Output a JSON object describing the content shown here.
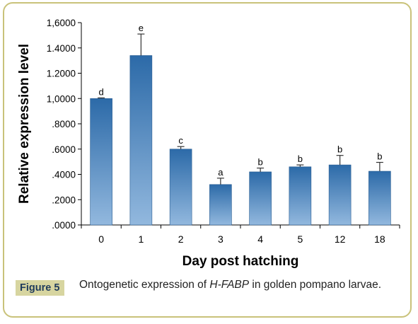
{
  "chart_data": {
    "type": "bar",
    "xlabel": "Day post hatching",
    "ylabel": "Relative expression level",
    "ylim": [
      0,
      1.6
    ],
    "yticks": [
      0,
      0.2,
      0.4,
      0.6,
      0.8,
      1.0,
      1.2,
      1.4,
      1.6
    ],
    "ytick_labels": [
      ".0000",
      ".2000",
      ".4000",
      ".6000",
      ".8000",
      "1,0000",
      "1.2000",
      "1.4000",
      "1,6000"
    ],
    "categories": [
      "0",
      "1",
      "2",
      "3",
      "4",
      "5",
      "12",
      "18"
    ],
    "values": [
      1.0,
      1.34,
      0.6,
      0.32,
      0.42,
      0.46,
      0.475,
      0.425
    ],
    "errors": [
      0.005,
      0.17,
      0.02,
      0.05,
      0.03,
      0.015,
      0.075,
      0.07
    ],
    "letters": [
      "d",
      "e",
      "c",
      "a",
      "b",
      "b",
      "b",
      "b"
    ],
    "grid": false,
    "colors": {
      "bar_dark": "#2c6aa8",
      "bar_light": "#92b8de",
      "axis": "#000000"
    }
  },
  "caption": {
    "label": "Figure 5",
    "text_before": "Ontogenetic expression of ",
    "text_italic": "H-FABP",
    "text_after": " in golden pompano larvae."
  }
}
